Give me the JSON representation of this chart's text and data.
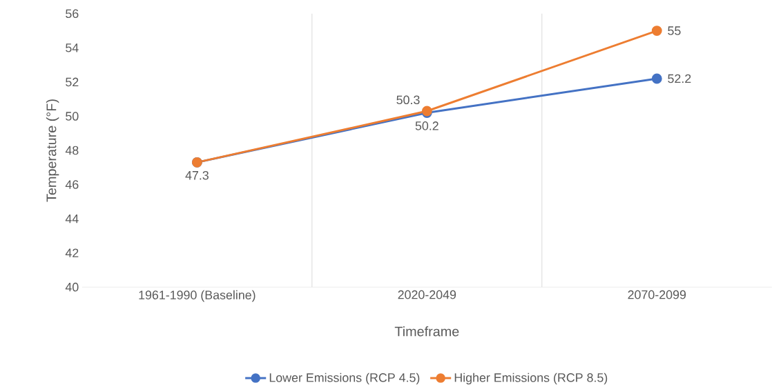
{
  "chart_data": {
    "type": "line",
    "xlabel": "Timeframe",
    "ylabel": "Temperature (°F)",
    "categories": [
      "1961-1990 (Baseline)",
      "2020-2049",
      "2070-2099"
    ],
    "series": [
      {
        "name": "Lower Emissions (RCP 4.5)",
        "color": "#4472c4",
        "values": [
          47.3,
          50.2,
          52.2
        ],
        "value_labels": [
          "47.3",
          "50.2",
          "52.2"
        ]
      },
      {
        "name": "Higher Emissions (RCP 8.5)",
        "color": "#ed7d31",
        "values": [
          47.3,
          50.3,
          55
        ],
        "value_labels": [
          null,
          "50.3",
          "55"
        ]
      }
    ],
    "ylim": [
      40,
      56
    ],
    "yticks": [
      40,
      42,
      44,
      46,
      48,
      50,
      52,
      54,
      56
    ],
    "grid": "x",
    "legend": "bottom",
    "marker": "circle",
    "line_style": "solid"
  }
}
